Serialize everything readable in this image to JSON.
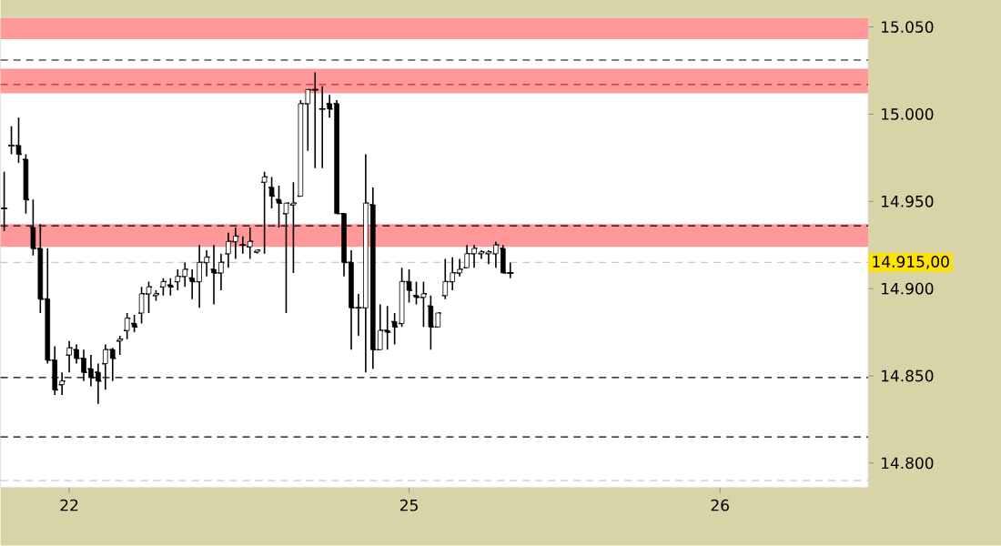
{
  "chart_data": {
    "type": "candlestick",
    "categories": [
      null,
      null,
      null,
      null,
      null,
      null,
      null,
      null,
      null,
      "22",
      null,
      null,
      null,
      null,
      null,
      null,
      null,
      null,
      null,
      null,
      null,
      null,
      null,
      null,
      null,
      null,
      null,
      null,
      null,
      null,
      null,
      null,
      null,
      null,
      null,
      null,
      null,
      null,
      null,
      null,
      null,
      null,
      null,
      null,
      null,
      null,
      null,
      null,
      null,
      null,
      null,
      null,
      null,
      null,
      null,
      null,
      "25",
      null,
      null,
      null,
      null,
      null,
      null,
      null,
      null,
      null,
      null,
      null,
      null,
      null,
      null,
      null,
      null,
      null,
      null,
      null,
      null,
      null,
      null,
      null,
      null,
      null,
      null,
      null,
      null,
      null,
      null,
      null,
      null,
      null,
      null,
      null,
      null,
      null,
      null,
      null,
      null,
      null,
      null,
      "26",
      null,
      null,
      null,
      null,
      null,
      null,
      null,
      null,
      null,
      null,
      null,
      null,
      null,
      null,
      null,
      null,
      null,
      null,
      null,
      null
    ],
    "ohlc": [
      [
        14946,
        14967,
        14933,
        14946
      ],
      [
        14982,
        14993,
        14977,
        14982
      ],
      [
        14982,
        14998,
        14972,
        14977
      ],
      [
        14974,
        14977,
        14943,
        14951
      ],
      [
        14935,
        14951,
        14919,
        14923
      ],
      [
        14923,
        14937,
        14886,
        14894
      ],
      [
        14894,
        14923,
        14857,
        14859
      ],
      [
        14859,
        14867,
        14839,
        14842
      ],
      [
        14845,
        14852,
        14839,
        14847
      ],
      [
        14862,
        14870,
        14852,
        14866
      ],
      [
        14865,
        14868,
        14857,
        14860
      ],
      [
        14860,
        14865,
        14847,
        14852
      ],
      [
        14854,
        14862,
        14844,
        14849
      ],
      [
        14852,
        14857,
        14834,
        14847
      ],
      [
        14857,
        14868,
        14842,
        14865
      ],
      [
        14865,
        14866,
        14847,
        14860
      ],
      [
        14870,
        14873,
        14862,
        14871
      ],
      [
        14876,
        14886,
        14871,
        14883
      ],
      [
        14880,
        14885,
        14875,
        14878
      ],
      [
        14886,
        14901,
        14880,
        14897
      ],
      [
        14897,
        14904,
        14886,
        14901
      ],
      [
        14896,
        14899,
        14893,
        14897
      ],
      [
        14901,
        14906,
        14896,
        14904
      ],
      [
        14902,
        14906,
        14896,
        14901
      ],
      [
        14904,
        14911,
        14899,
        14907
      ],
      [
        14907,
        14915,
        14901,
        14911
      ],
      [
        14906,
        14911,
        14894,
        14904
      ],
      [
        14904,
        14925,
        14889,
        14915
      ],
      [
        14915,
        14922,
        14907,
        14918
      ],
      [
        14911,
        14925,
        14891,
        14909
      ],
      [
        14909,
        14920,
        14899,
        14915
      ],
      [
        14920,
        14932,
        14912,
        14927
      ],
      [
        14927,
        14935,
        14917,
        14930
      ],
      [
        14925,
        14930,
        14920,
        14925
      ],
      [
        14924,
        14935,
        14917,
        14927
      ],
      [
        14921,
        14922,
        14920,
        14922
      ],
      [
        14961,
        14967,
        14920,
        14964
      ],
      [
        14958,
        14964,
        14946,
        14953
      ],
      [
        14951,
        14959,
        14935,
        14949
      ],
      [
        14943,
        14949,
        14886,
        14949
      ],
      [
        14948,
        14961,
        14909,
        14949
      ],
      [
        14953,
        15008,
        14953,
        15006
      ],
      [
        15006,
        15014,
        14979,
        15014
      ],
      [
        15014,
        15024,
        14969,
        15014
      ],
      [
        15003,
        15016,
        14969,
        15003
      ],
      [
        15006,
        15011,
        14998,
        15003
      ],
      [
        15006,
        15008,
        14943,
        14943
      ],
      [
        14943,
        14943,
        14907,
        14915
      ],
      [
        14915,
        14922,
        14865,
        14889
      ],
      [
        14889,
        14897,
        14873,
        14889
      ],
      [
        14889,
        14977,
        14852,
        14949
      ],
      [
        14948,
        14958,
        14854,
        14865
      ],
      [
        14865,
        14891,
        14865,
        14876
      ],
      [
        14876,
        14890,
        14865,
        14875
      ],
      [
        14881,
        14886,
        14868,
        14878
      ],
      [
        14880,
        14912,
        14878,
        14904
      ],
      [
        14904,
        14911,
        14892,
        14899
      ],
      [
        14896,
        14904,
        14891,
        14895
      ],
      [
        14895,
        14904,
        14878,
        14897
      ],
      [
        14890,
        14896,
        14865,
        14878
      ],
      [
        14878,
        14886,
        14878,
        14886
      ],
      [
        14896,
        14917,
        14894,
        14904
      ],
      [
        14904,
        14918,
        14899,
        14909
      ],
      [
        14909,
        14917,
        14907,
        14911
      ],
      [
        14912,
        14925,
        14912,
        14920
      ],
      [
        14920,
        14925,
        14912,
        14923
      ],
      [
        14920,
        14922,
        14917,
        14921
      ],
      [
        14920,
        14922,
        14914,
        14921
      ],
      [
        14920,
        14927,
        14912,
        14925
      ],
      [
        14923,
        14925,
        14909,
        14909
      ],
      [
        14909,
        14915,
        14906,
        14909
      ],
      null,
      null,
      null,
      null,
      null,
      null,
      null,
      null,
      null,
      null,
      null,
      null,
      null,
      null,
      null,
      null,
      null,
      null,
      null,
      null,
      null,
      null,
      null,
      null,
      null,
      null,
      null,
      null,
      null,
      null,
      null,
      null,
      null,
      null,
      null,
      null,
      null,
      null,
      null,
      null,
      null,
      null,
      null,
      null,
      null,
      null,
      null,
      null,
      null
    ],
    "color": "#000000",
    "ylim": [
      14786,
      15055
    ],
    "yticks": [
      {
        "value": 14800,
        "label": "14.800"
      },
      {
        "value": 14850,
        "label": "14.850"
      },
      {
        "value": 14900,
        "label": "14.900"
      },
      {
        "value": 14950,
        "label": "14.950"
      },
      {
        "value": 15000,
        "label": "15.000"
      },
      {
        "value": 15050,
        "label": "15.050"
      }
    ],
    "ref_lines": [
      {
        "axis": "y",
        "value": 15031,
        "color": "#000000",
        "line_style": "dashed"
      },
      {
        "axis": "y",
        "value": 15017,
        "color": "#cc2222",
        "line_style": "dashed"
      },
      {
        "axis": "y",
        "value": 14936,
        "color": "#000000",
        "line_style": "dashed"
      },
      {
        "axis": "y",
        "value": 14915,
        "label": "14.915,00",
        "color": "#c8c8c8",
        "line_style": "dashed"
      },
      {
        "axis": "y",
        "value": 14849,
        "color": "#000000",
        "line_style": "dashed"
      },
      {
        "axis": "y",
        "value": 14815,
        "color": "#000000",
        "line_style": "dashed"
      },
      {
        "axis": "y",
        "value": 14790,
        "color": "#c8c8c8",
        "line_style": "dashed"
      }
    ],
    "bands": [
      {
        "axis": "y",
        "from": 15043,
        "to": 15055,
        "color": "#ff9999"
      },
      {
        "axis": "y",
        "from": 15012,
        "to": 15026,
        "color": "#ff9999"
      },
      {
        "axis": "y",
        "from": 14924,
        "to": 14937,
        "color": "#ff9999"
      }
    ],
    "grid": false
  }
}
